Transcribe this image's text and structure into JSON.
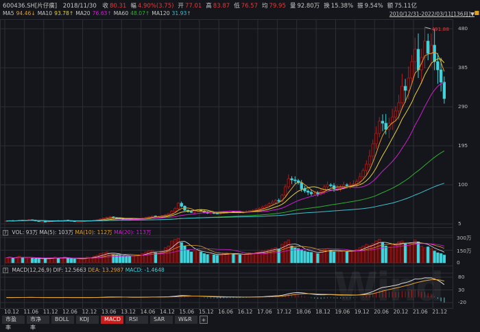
{
  "header": {
    "code": "600436.SH[片仔癀]",
    "date": "2018/11/30",
    "items": [
      {
        "k": "收",
        "v": "80.31"
      },
      {
        "k": "幅",
        "v": "4.90%(3.75)"
      },
      {
        "k": "开",
        "v": "77.01"
      },
      {
        "k": "高",
        "v": "83.87"
      },
      {
        "k": "低",
        "v": "76.57"
      },
      {
        "k": "均",
        "v": "79.95"
      },
      {
        "k": "量",
        "v": "92.80万"
      },
      {
        "k": "换",
        "v": "15.38%"
      },
      {
        "k": "振",
        "v": "9.54%"
      },
      {
        "k": "额",
        "v": "75.11亿"
      }
    ]
  },
  "ma_legend": [
    {
      "k": "MA5",
      "v": "94.46↓",
      "color": "#e0a030"
    },
    {
      "k": "MA10",
      "v": "93.78↑",
      "color": "#e8d040"
    },
    {
      "k": "MA20",
      "v": "76.63↑",
      "color": "#d020d0"
    },
    {
      "k": "MA60",
      "v": "48.07↑",
      "color": "#30b030"
    },
    {
      "k": "MA120",
      "v": "31.93↑",
      "color": "#40c0d0"
    }
  ],
  "range": "2010/12/31-2022/03/11[136月]▼",
  "lock_icon": "🔒",
  "vol_header": {
    "q": "?",
    "vol": "VOL: 93万",
    "ma5": "MA(5): 103万",
    "ma10": "MA(10): 112万",
    "ma20": "MA(20): 113万"
  },
  "macd_header": {
    "q": "?",
    "name": "MACD(12,26,9)",
    "dif": "DIF: 12.5663",
    "dea": "DEA: 13.2987",
    "macd": "MACD: -1.4648"
  },
  "tabs": [
    "市盈率",
    "市净率",
    "BOLL",
    "KDJ",
    "MACD",
    "RSI",
    "SAR",
    "W&R",
    "+"
  ],
  "active_tab": "MACD",
  "watermark": "Wind",
  "chart_data": {
    "type": "candlestick",
    "period": "monthly",
    "x_labels": [
      "10.12",
      "11.06",
      "11.12",
      "12.06",
      "12.12",
      "13.06",
      "13.12",
      "14.06",
      "14.12",
      "15.06",
      "15.12",
      "16.06",
      "16.12",
      "17.06",
      "17.12",
      "18.06",
      "18.12",
      "19.06",
      "19.12",
      "20.06",
      "20.12",
      "21.06",
      "21.12"
    ],
    "price_axis": {
      "ticks": [
        "480",
        "385",
        "290",
        "195",
        "100",
        "5"
      ],
      "range": [
        5,
        480
      ]
    },
    "max_label": "491.88",
    "close": [
      12,
      13,
      12,
      13,
      14,
      13,
      14,
      15,
      14,
      12,
      11,
      11,
      10,
      11,
      12,
      13,
      12,
      13,
      14,
      13,
      12,
      11,
      11,
      11,
      12,
      13,
      13,
      14,
      15,
      17,
      19,
      21,
      22,
      20,
      19,
      18,
      17,
      16,
      15,
      16,
      17,
      18,
      19,
      21,
      22,
      24,
      23,
      23,
      25,
      27,
      30,
      36,
      42,
      55,
      48,
      38,
      35,
      33,
      36,
      38,
      36,
      33,
      31,
      32,
      31,
      30,
      31,
      33,
      34,
      35,
      34,
      34,
      33,
      34,
      35,
      37,
      38,
      40,
      43,
      46,
      50,
      54,
      58,
      62,
      60,
      75,
      95,
      115,
      112,
      110,
      105,
      90,
      85,
      82,
      78,
      80,
      78,
      85,
      95,
      100,
      98,
      90,
      92,
      95,
      100,
      98,
      100,
      102,
      108,
      120,
      135,
      150,
      170,
      200,
      225,
      255,
      250,
      235,
      250,
      265,
      280,
      300,
      340,
      330,
      360,
      400,
      430,
      380,
      410,
      450,
      420,
      440,
      400,
      380,
      350,
      310
    ],
    "volume_wan": [
      60,
      70,
      55,
      65,
      80,
      60,
      58,
      62,
      55,
      50,
      48,
      45,
      52,
      55,
      60,
      70,
      58,
      62,
      66,
      54,
      50,
      48,
      45,
      50,
      58,
      70,
      65,
      80,
      90,
      110,
      120,
      130,
      115,
      100,
      95,
      90,
      85,
      80,
      75,
      85,
      90,
      95,
      110,
      130,
      140,
      150,
      120,
      115,
      140,
      180,
      200,
      260,
      280,
      290,
      240,
      200,
      150,
      130,
      140,
      150,
      130,
      110,
      100,
      105,
      95,
      90,
      100,
      110,
      120,
      115,
      105,
      100,
      95,
      100,
      110,
      120,
      115,
      125,
      130,
      140,
      150,
      160,
      170,
      180,
      160,
      220,
      250,
      270,
      200,
      180,
      170,
      150,
      140,
      130,
      125,
      120,
      110,
      140,
      160,
      170,
      150,
      130,
      135,
      140,
      150,
      130,
      135,
      140,
      160,
      180,
      200,
      220,
      210,
      230,
      260,
      280,
      240,
      200,
      190,
      210,
      220,
      250,
      260,
      230,
      220,
      240,
      270,
      250,
      200,
      180,
      190,
      170,
      140,
      120,
      110,
      93
    ],
    "volume_axis": {
      "ticks": [
        "300万",
        "150万",
        "0"
      ],
      "range": [
        0,
        300
      ]
    },
    "macd_axis": {
      "ticks": [
        "80",
        "30",
        "-20"
      ],
      "range": [
        -20,
        80
      ]
    },
    "ma_periods": [
      5,
      10,
      20,
      60,
      120
    ],
    "colors": {
      "up": "#d02525",
      "down": "#3fd3dc",
      "dif": "#e0e0e0",
      "dea": "#e0a030",
      "grid": "#2c2f36"
    }
  }
}
